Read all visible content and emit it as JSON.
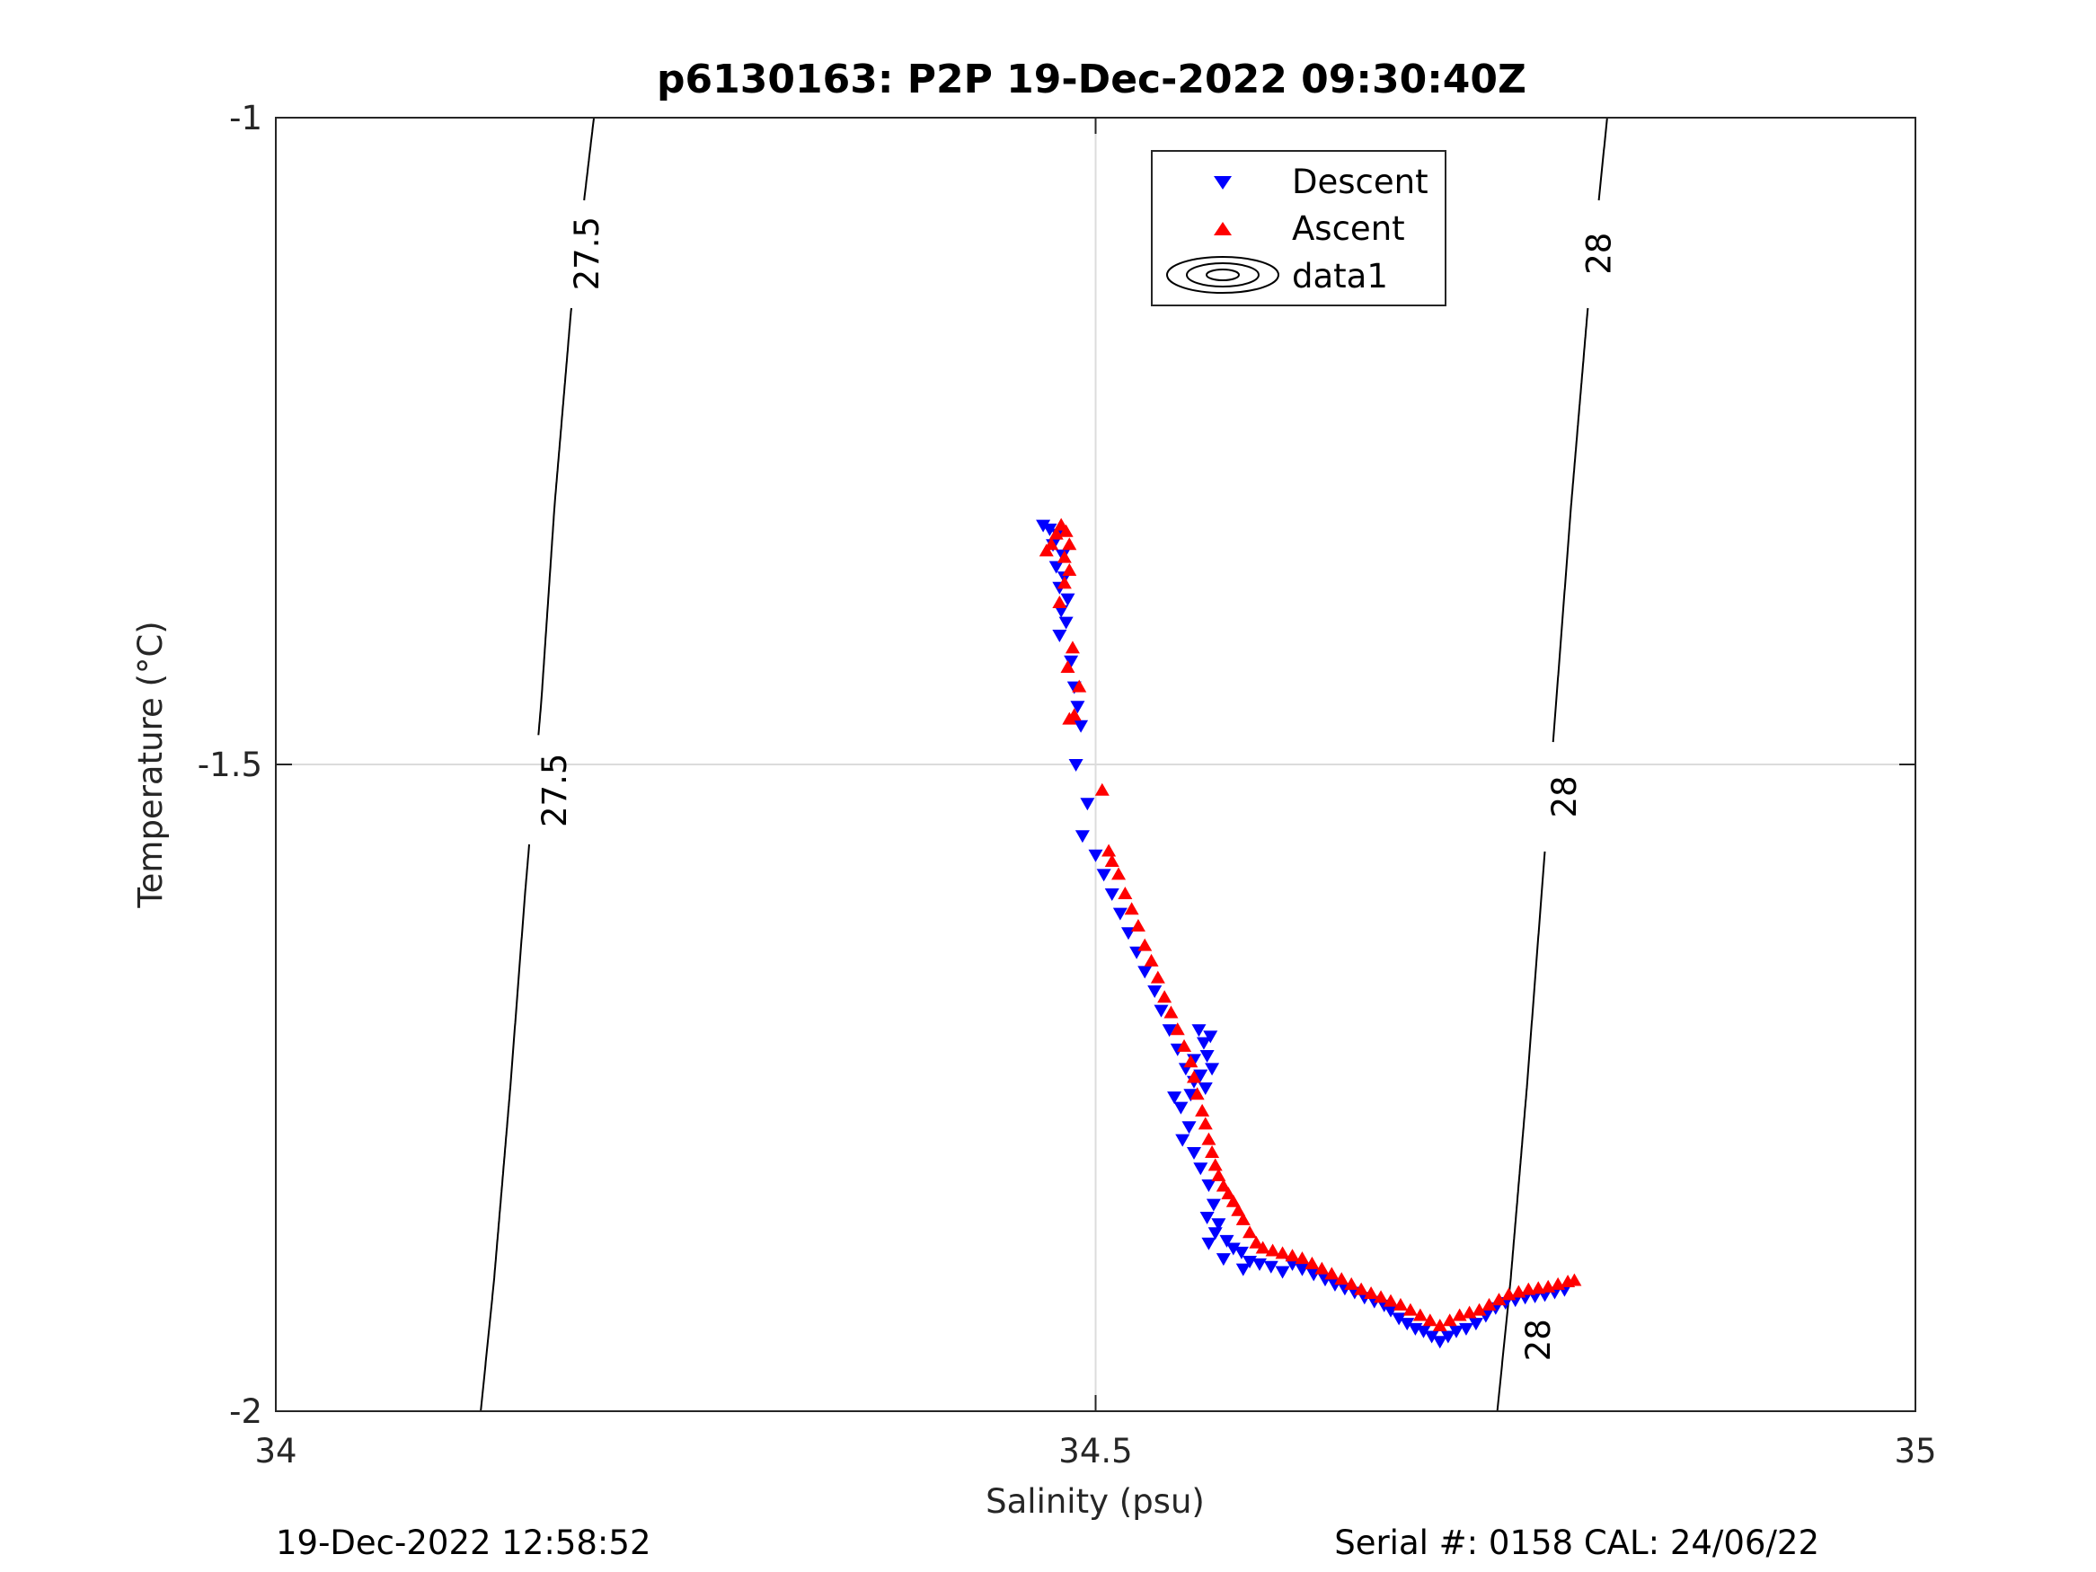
{
  "chart_data": {
    "type": "scatter",
    "title": "p6130163: P2P 19-Dec-2022 09:30:40Z",
    "xlabel": "Salinity (psu)",
    "ylabel": "Temperature (°C)",
    "xlim": [
      34,
      35
    ],
    "ylim": [
      -2,
      -1
    ],
    "xticks": [
      34,
      34.5,
      35
    ],
    "xtick_labels": [
      "34",
      "34.5",
      "35"
    ],
    "yticks": [
      -2,
      -1.5,
      -1
    ],
    "ytick_labels": [
      "-2",
      "-1.5",
      "-1"
    ],
    "grid": true,
    "legend_position": "top-center",
    "legend": [
      "Descent",
      "Ascent",
      "data1"
    ],
    "footer_left": "19-Dec-2022 12:58:52",
    "footer_right": "Serial #: 0158  CAL: 24/06/22",
    "contours": [
      {
        "level": "27.5",
        "points": [
          [
            34.194,
            -1
          ],
          [
            34.18,
            -1.15
          ],
          [
            34.17,
            -1.3
          ],
          [
            34.162,
            -1.45
          ],
          [
            34.152,
            -1.6
          ],
          [
            34.143,
            -1.75
          ],
          [
            34.133,
            -1.9
          ],
          [
            34.125,
            -2
          ]
        ]
      },
      {
        "level": "28",
        "points": [
          [
            34.812,
            -1
          ],
          [
            34.8,
            -1.15
          ],
          [
            34.79,
            -1.3
          ],
          [
            34.781,
            -1.45
          ],
          [
            34.772,
            -1.6
          ],
          [
            34.763,
            -1.75
          ],
          [
            34.753,
            -1.9
          ],
          [
            34.745,
            -2
          ]
        ]
      }
    ],
    "contour_labels": [
      {
        "text": "27.5",
        "x": 34.19,
        "y": -1.105
      },
      {
        "text": "27.5",
        "x": 34.17,
        "y": -1.52
      },
      {
        "text": "28",
        "x": 34.807,
        "y": -1.105
      },
      {
        "text": "28",
        "x": 34.786,
        "y": -1.525
      },
      {
        "text": "28",
        "x": 34.77,
        "y": -1.945
      }
    ],
    "series": [
      {
        "name": "Descent",
        "marker": "triangle-down",
        "color": "#0000ff",
        "points": [
          [
            34.468,
            -1.315
          ],
          [
            34.472,
            -1.318
          ],
          [
            34.477,
            -1.322
          ],
          [
            34.474,
            -1.33
          ],
          [
            34.48,
            -1.338
          ],
          [
            34.476,
            -1.347
          ],
          [
            34.481,
            -1.355
          ],
          [
            34.478,
            -1.363
          ],
          [
            34.483,
            -1.372
          ],
          [
            34.479,
            -1.381
          ],
          [
            34.482,
            -1.39
          ],
          [
            34.478,
            -1.4
          ],
          [
            34.485,
            -1.42
          ],
          [
            34.487,
            -1.44
          ],
          [
            34.489,
            -1.455
          ],
          [
            34.491,
            -1.47
          ],
          [
            34.488,
            -1.5
          ],
          [
            34.495,
            -1.53
          ],
          [
            34.492,
            -1.555
          ],
          [
            34.5,
            -1.57
          ],
          [
            34.505,
            -1.585
          ],
          [
            34.51,
            -1.6
          ],
          [
            34.515,
            -1.615
          ],
          [
            34.52,
            -1.63
          ],
          [
            34.525,
            -1.645
          ],
          [
            34.53,
            -1.66
          ],
          [
            34.536,
            -1.675
          ],
          [
            34.54,
            -1.69
          ],
          [
            34.545,
            -1.705
          ],
          [
            34.55,
            -1.72
          ],
          [
            34.555,
            -1.735
          ],
          [
            34.56,
            -1.745
          ],
          [
            34.564,
            -1.74
          ],
          [
            34.56,
            -1.728
          ],
          [
            34.566,
            -1.715
          ],
          [
            34.563,
            -1.705
          ],
          [
            34.57,
            -1.71
          ],
          [
            34.568,
            -1.725
          ],
          [
            34.571,
            -1.735
          ],
          [
            34.567,
            -1.75
          ],
          [
            34.558,
            -1.755
          ],
          [
            34.548,
            -1.757
          ],
          [
            34.552,
            -1.765
          ],
          [
            34.557,
            -1.78
          ],
          [
            34.553,
            -1.79
          ],
          [
            34.56,
            -1.8
          ],
          [
            34.564,
            -1.812
          ],
          [
            34.569,
            -1.825
          ],
          [
            34.572,
            -1.84
          ],
          [
            34.568,
            -1.85
          ],
          [
            34.575,
            -1.855
          ],
          [
            34.573,
            -1.862
          ],
          [
            34.569,
            -1.87
          ],
          [
            34.58,
            -1.868
          ],
          [
            34.584,
            -1.874
          ],
          [
            34.578,
            -1.882
          ],
          [
            34.589,
            -1.877
          ],
          [
            34.594,
            -1.884
          ],
          [
            34.59,
            -1.89
          ],
          [
            34.6,
            -1.886
          ],
          [
            34.607,
            -1.888
          ],
          [
            34.614,
            -1.892
          ],
          [
            34.62,
            -1.886
          ],
          [
            34.626,
            -1.89
          ],
          [
            34.633,
            -1.894
          ],
          [
            34.64,
            -1.898
          ],
          [
            34.646,
            -1.902
          ],
          [
            34.652,
            -1.905
          ],
          [
            34.658,
            -1.908
          ],
          [
            34.664,
            -1.912
          ],
          [
            34.67,
            -1.915
          ],
          [
            34.676,
            -1.918
          ],
          [
            34.68,
            -1.922
          ],
          [
            34.685,
            -1.928
          ],
          [
            34.69,
            -1.932
          ],
          [
            34.695,
            -1.936
          ],
          [
            34.7,
            -1.938
          ],
          [
            34.705,
            -1.942
          ],
          [
            34.71,
            -1.946
          ],
          [
            34.715,
            -1.942
          ],
          [
            34.72,
            -1.938
          ],
          [
            34.726,
            -1.936
          ],
          [
            34.732,
            -1.932
          ],
          [
            34.738,
            -1.926
          ],
          [
            34.744,
            -1.92
          ],
          [
            34.75,
            -1.916
          ],
          [
            34.756,
            -1.914
          ],
          [
            34.762,
            -1.912
          ],
          [
            34.768,
            -1.911
          ],
          [
            34.774,
            -1.91
          ],
          [
            34.78,
            -1.908
          ],
          [
            34.786,
            -1.906
          ]
        ]
      },
      {
        "name": "Ascent",
        "marker": "triangle-up",
        "color": "#ff0000",
        "points": [
          [
            34.47,
            -1.335
          ],
          [
            34.473,
            -1.33
          ],
          [
            34.476,
            -1.322
          ],
          [
            34.479,
            -1.315
          ],
          [
            34.482,
            -1.32
          ],
          [
            34.484,
            -1.33
          ],
          [
            34.481,
            -1.34
          ],
          [
            34.484,
            -1.35
          ],
          [
            34.481,
            -1.36
          ],
          [
            34.478,
            -1.375
          ],
          [
            34.486,
            -1.41
          ],
          [
            34.483,
            -1.425
          ],
          [
            34.49,
            -1.44
          ],
          [
            34.487,
            -1.462
          ],
          [
            34.484,
            -1.465
          ],
          [
            34.504,
            -1.52
          ],
          [
            34.508,
            -1.567
          ],
          [
            34.51,
            -1.575
          ],
          [
            34.514,
            -1.585
          ],
          [
            34.518,
            -1.6
          ],
          [
            34.522,
            -1.612
          ],
          [
            34.526,
            -1.625
          ],
          [
            34.53,
            -1.64
          ],
          [
            34.534,
            -1.652
          ],
          [
            34.538,
            -1.665
          ],
          [
            34.542,
            -1.68
          ],
          [
            34.546,
            -1.692
          ],
          [
            34.55,
            -1.705
          ],
          [
            34.554,
            -1.718
          ],
          [
            34.558,
            -1.73
          ],
          [
            34.56,
            -1.742
          ],
          [
            34.562,
            -1.755
          ],
          [
            34.565,
            -1.768
          ],
          [
            34.567,
            -1.778
          ],
          [
            34.569,
            -1.79
          ],
          [
            34.571,
            -1.8
          ],
          [
            34.573,
            -1.81
          ],
          [
            34.575,
            -1.818
          ],
          [
            34.578,
            -1.826
          ],
          [
            34.581,
            -1.832
          ],
          [
            34.584,
            -1.838
          ],
          [
            34.587,
            -1.845
          ],
          [
            34.59,
            -1.852
          ],
          [
            34.594,
            -1.862
          ],
          [
            34.598,
            -1.87
          ],
          [
            34.602,
            -1.874
          ],
          [
            34.608,
            -1.876
          ],
          [
            34.614,
            -1.878
          ],
          [
            34.62,
            -1.88
          ],
          [
            34.626,
            -1.882
          ],
          [
            34.632,
            -1.886
          ],
          [
            34.638,
            -1.89
          ],
          [
            34.644,
            -1.894
          ],
          [
            34.65,
            -1.898
          ],
          [
            34.656,
            -1.902
          ],
          [
            34.662,
            -1.906
          ],
          [
            34.668,
            -1.909
          ],
          [
            34.674,
            -1.912
          ],
          [
            34.68,
            -1.915
          ],
          [
            34.686,
            -1.918
          ],
          [
            34.692,
            -1.922
          ],
          [
            34.698,
            -1.926
          ],
          [
            34.704,
            -1.93
          ],
          [
            34.71,
            -1.934
          ],
          [
            34.716,
            -1.93
          ],
          [
            34.722,
            -1.926
          ],
          [
            34.728,
            -1.924
          ],
          [
            34.734,
            -1.922
          ],
          [
            34.74,
            -1.918
          ],
          [
            34.746,
            -1.914
          ],
          [
            34.752,
            -1.91
          ],
          [
            34.758,
            -1.908
          ],
          [
            34.764,
            -1.906
          ],
          [
            34.77,
            -1.905
          ],
          [
            34.776,
            -1.904
          ],
          [
            34.782,
            -1.902
          ],
          [
            34.788,
            -1.9
          ],
          [
            34.792,
            -1.899
          ]
        ]
      },
      {
        "name": "data1",
        "marker": "contour",
        "color": "#000000",
        "points": []
      }
    ]
  }
}
